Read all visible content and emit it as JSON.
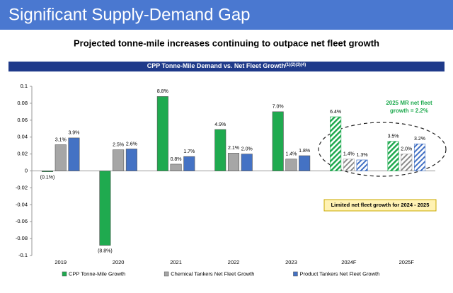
{
  "slide_title": "Significant Supply-Demand Gap",
  "subtitle": "Projected tonne-mile increases continuing to outpace net fleet growth",
  "chart_data": {
    "type": "bar",
    "title": "CPP Tonne-Mile Demand vs. Net Fleet Growth",
    "title_superscript": "(1)(2)(3)(4)",
    "categories": [
      "2019",
      "2020",
      "2021",
      "2022",
      "2023",
      "2024F",
      "2025F"
    ],
    "hatched": [
      false,
      false,
      false,
      false,
      false,
      true,
      true
    ],
    "series": [
      {
        "name": "CPP Tonne-Mile Growth",
        "color": "#1faa4f",
        "values": [
          -0.001,
          -0.088,
          0.088,
          0.049,
          0.07,
          0.064,
          0.035
        ],
        "value_labels": [
          "(0.1%)",
          "(8.8%)",
          "8.8%",
          "4.9%",
          "7.0%",
          "6.4%",
          "3.5%"
        ]
      },
      {
        "name": "Chemical Tankers Net Fleet Growth",
        "color": "#a6a6a6",
        "values": [
          0.031,
          0.025,
          0.008,
          0.021,
          0.014,
          0.014,
          0.02
        ],
        "value_labels": [
          "3.1%",
          "2.5%",
          "0.8%",
          "2.1%",
          "1.4%",
          "1.4%",
          "2.0%"
        ]
      },
      {
        "name": "Product Tankers Net Fleet Growth",
        "color": "#4472c4",
        "values": [
          0.039,
          0.026,
          0.017,
          0.02,
          0.018,
          0.013,
          0.032
        ],
        "value_labels": [
          "3.9%",
          "2.6%",
          "1.7%",
          "2.0%",
          "1.8%",
          "1.3%",
          "3.2%"
        ]
      }
    ],
    "ylim": [
      -0.1,
      0.1
    ],
    "yticks": [
      -0.1,
      -0.08,
      -0.06,
      -0.04,
      -0.02,
      0,
      0.02,
      0.04,
      0.06,
      0.08,
      0.1
    ],
    "grid": false,
    "legend": "bottom",
    "annotations": [
      "2025 MR net fleet",
      "growth = 2.2%",
      "Limited net fleet growth for 2024 - 2025"
    ]
  }
}
